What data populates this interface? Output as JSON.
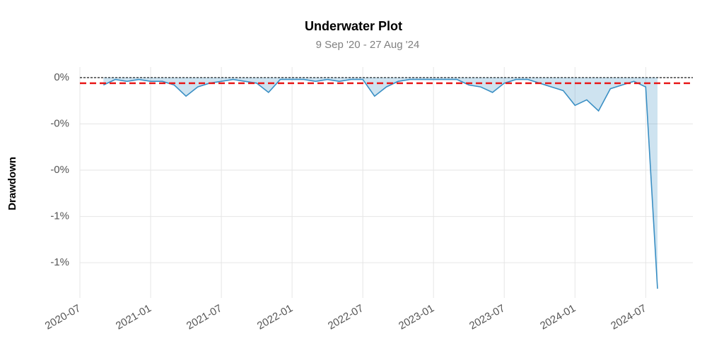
{
  "chart_data": {
    "type": "line",
    "title": "Underwater Plot",
    "subtitle": "9 Sep '20 - 27 Aug '24",
    "y_label": "Drawdown",
    "x": [
      "2020-09",
      "2020-10",
      "2020-11",
      "2020-12",
      "2021-01",
      "2021-02",
      "2021-03",
      "2021-04",
      "2021-05",
      "2021-06",
      "2021-07",
      "2021-08",
      "2021-09",
      "2021-10",
      "2021-11",
      "2021-12",
      "2022-01",
      "2022-02",
      "2022-03",
      "2022-04",
      "2022-05",
      "2022-06",
      "2022-07",
      "2022-08",
      "2022-09",
      "2022-10",
      "2022-11",
      "2022-12",
      "2023-01",
      "2023-02",
      "2023-03",
      "2023-04",
      "2023-05",
      "2023-06",
      "2023-07",
      "2023-08",
      "2023-09",
      "2023-10",
      "2023-11",
      "2023-12",
      "2024-01",
      "2024-02",
      "2024-03",
      "2024-04",
      "2024-05",
      "2024-06",
      "2024-07",
      "2024-08"
    ],
    "series": [
      {
        "name": "Drawdown",
        "color": "#3a8fc4",
        "values": [
          -0.04,
          -0.01,
          -0.02,
          -0.01,
          -0.02,
          -0.02,
          -0.04,
          -0.1,
          -0.05,
          -0.03,
          -0.02,
          -0.01,
          -0.02,
          -0.03,
          -0.08,
          -0.01,
          -0.01,
          -0.01,
          -0.02,
          -0.01,
          -0.02,
          -0.01,
          -0.01,
          -0.1,
          -0.05,
          -0.02,
          -0.01,
          -0.01,
          -0.01,
          -0.01,
          -0.01,
          -0.04,
          -0.05,
          -0.08,
          -0.03,
          -0.01,
          -0.01,
          -0.03,
          -0.05,
          -0.07,
          -0.15,
          -0.12,
          -0.18,
          -0.06,
          -0.04,
          -0.02,
          -0.05,
          -1.14
        ]
      }
    ],
    "mean_drawdown": -0.03,
    "mean_color": "#e8191a",
    "xlim": [
      "2020-07",
      "2024-11"
    ],
    "xticks": [
      "2020-07",
      "2021-01",
      "2021-07",
      "2022-01",
      "2022-07",
      "2023-01",
      "2023-07",
      "2024-01",
      "2024-07"
    ],
    "ylim": [
      -1.19,
      0.057
    ],
    "yticks": [
      {
        "value": 0,
        "label": "0%"
      },
      {
        "value": -0.25,
        "label": "-0%"
      },
      {
        "value": -0.5,
        "label": "-0%"
      },
      {
        "value": -0.75,
        "label": "-1%"
      },
      {
        "value": -1.0,
        "label": "-1%"
      }
    ],
    "grid": true
  }
}
